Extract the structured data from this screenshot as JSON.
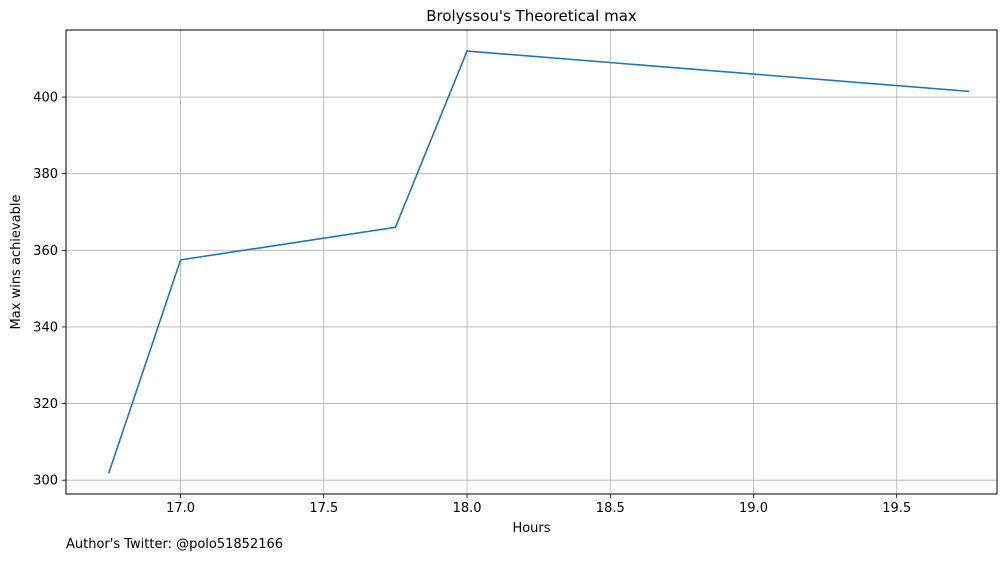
{
  "chart_data": {
    "type": "line",
    "title": "Brolyssou's Theoretical max",
    "xlabel": "Hours",
    "ylabel": "Max wins achievable",
    "x": [
      16.75,
      17.0,
      17.75,
      18.0,
      19.75
    ],
    "series": [
      {
        "values": [
          302,
          357.5,
          366,
          412,
          401.5
        ],
        "color": "#1f77b4"
      }
    ],
    "xlim": [
      16.6,
      19.85
    ],
    "ylim": [
      296.4,
      417.5
    ],
    "xticks": [
      17.0,
      17.5,
      18.0,
      18.5,
      19.0,
      19.5
    ],
    "xtick_labels": [
      "17.0",
      "17.5",
      "18.0",
      "18.5",
      "19.0",
      "19.5"
    ],
    "yticks": [
      300,
      320,
      340,
      360,
      380,
      400
    ],
    "ytick_labels": [
      "300",
      "320",
      "340",
      "360",
      "380",
      "400"
    ],
    "grid": true,
    "legend": false
  },
  "footnote": "Author's Twitter: @polo51852166"
}
